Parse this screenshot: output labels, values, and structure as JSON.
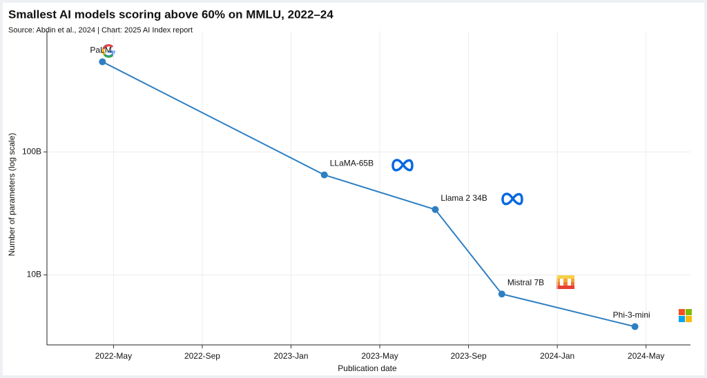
{
  "chart_data": {
    "type": "line",
    "title": "Smallest AI models scoring above 60% on MMLU, 2022–24",
    "subtitle": "Source: Abdin et al., 2024 | Chart: 2025 AI Index report",
    "x_label": "Publication date",
    "y_label": "Number of parameters (log scale)",
    "x": [
      "2022-04",
      "2023-02",
      "2023-07",
      "2023-10",
      "2024-04"
    ],
    "point_labels": [
      "PaLM",
      "LLaMA-65B",
      "Llama 2 34B",
      "Mistral 7B",
      "Phi-3-mini"
    ],
    "values": [
      540,
      65,
      34,
      7,
      3.8
    ],
    "color": "#2e7fc1",
    "xlim": [
      "2022-02",
      "2024-07"
    ],
    "xticks": [
      {
        "value": "2022-05",
        "label": "2022-May"
      },
      {
        "value": "2022-09",
        "label": "2022-Sep"
      },
      {
        "value": "2023-01",
        "label": "2023-Jan"
      },
      {
        "value": "2023-05",
        "label": "2023-May"
      },
      {
        "value": "2023-09",
        "label": "2023-Sep"
      },
      {
        "value": "2024-01",
        "label": "2024-Jan"
      },
      {
        "value": "2024-05",
        "label": "2024-May"
      }
    ],
    "ylim": [
      2.7,
      960
    ],
    "yticks": [
      {
        "value": 10,
        "label": "10B"
      },
      {
        "value": 100,
        "label": "100B"
      }
    ],
    "log_y": true,
    "grid": true
  }
}
